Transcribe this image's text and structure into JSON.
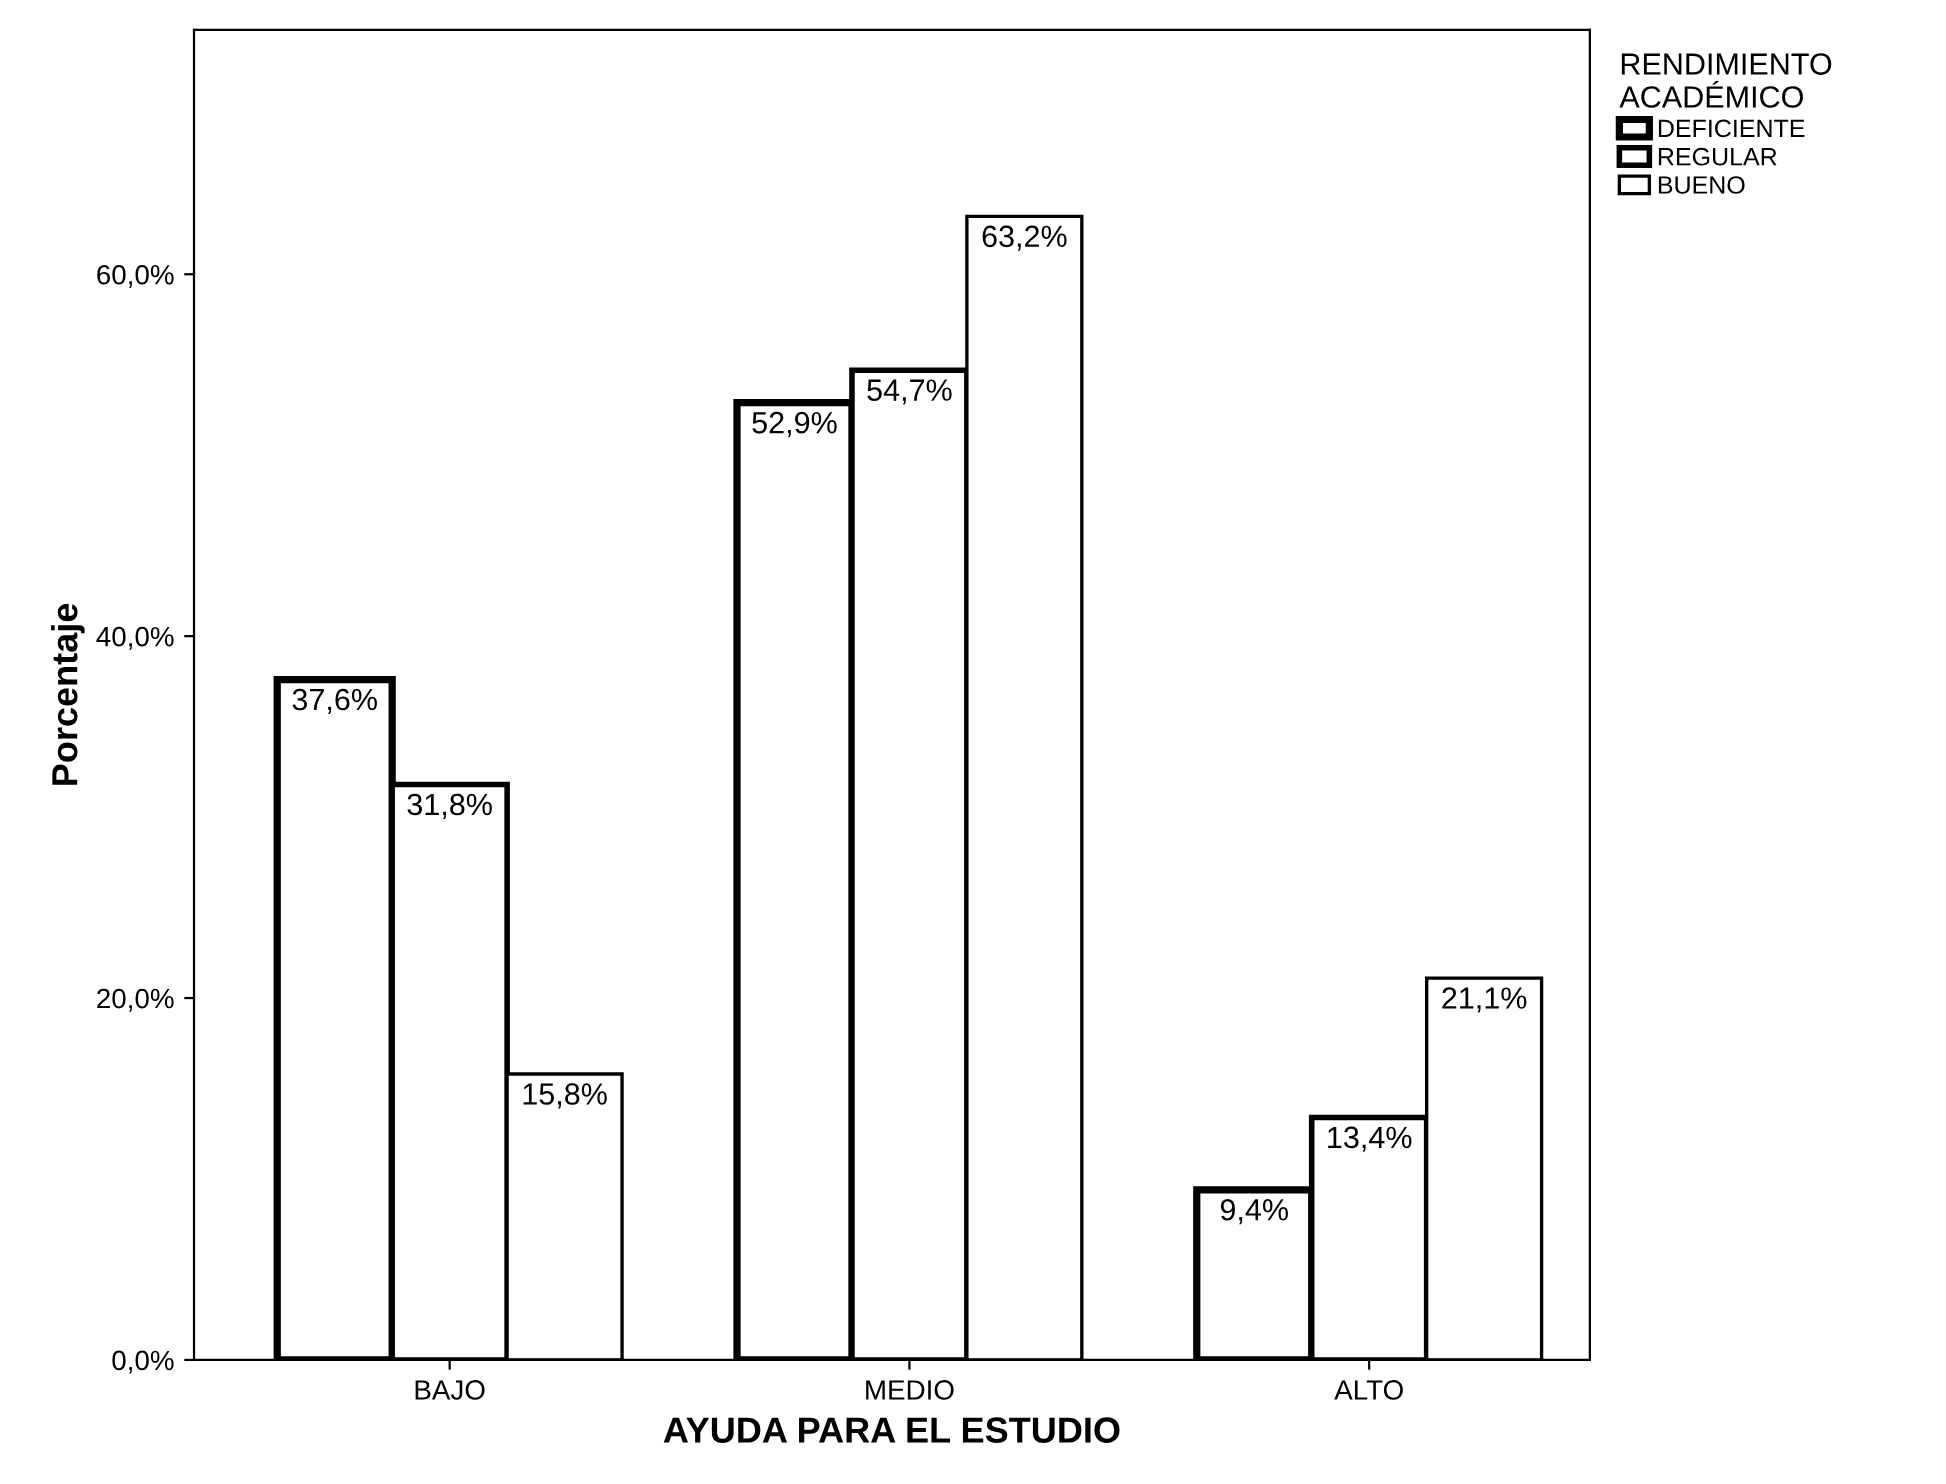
{
  "chart_data": {
    "type": "bar",
    "xlabel": "AYUDA PARA EL ESTUDIO",
    "ylabel": "Porcentaje",
    "legend_title": "RENDIMIENTO\nACADÉMICO",
    "categories": [
      "BAJO",
      "MEDIO",
      "ALTO"
    ],
    "series": [
      {
        "name": "DEFICIENTE",
        "color": "#ffffff",
        "values": [
          37.6,
          52.9,
          9.4
        ],
        "value_labels": [
          "37,6%",
          "52,9%",
          "9,4%"
        ]
      },
      {
        "name": "REGULAR",
        "color": "#ffffff",
        "values": [
          31.8,
          54.7,
          13.4
        ],
        "value_labels": [
          "31,8%",
          "54,7%",
          "13,4%"
        ]
      },
      {
        "name": "BUENO",
        "color": "#ffffff",
        "values": [
          15.8,
          63.2,
          21.1
        ],
        "value_labels": [
          "15,8%",
          "63,2%",
          "21,1%"
        ]
      }
    ],
    "ylim": [
      0,
      73.5
    ],
    "yticks": [
      {
        "value": 0,
        "label": "0,0%"
      },
      {
        "value": 20,
        "label": "20,0%"
      },
      {
        "value": 40,
        "label": "40,0%"
      },
      {
        "value": 60,
        "label": "60,0%"
      }
    ],
    "legend": "top right",
    "grid": false
  }
}
